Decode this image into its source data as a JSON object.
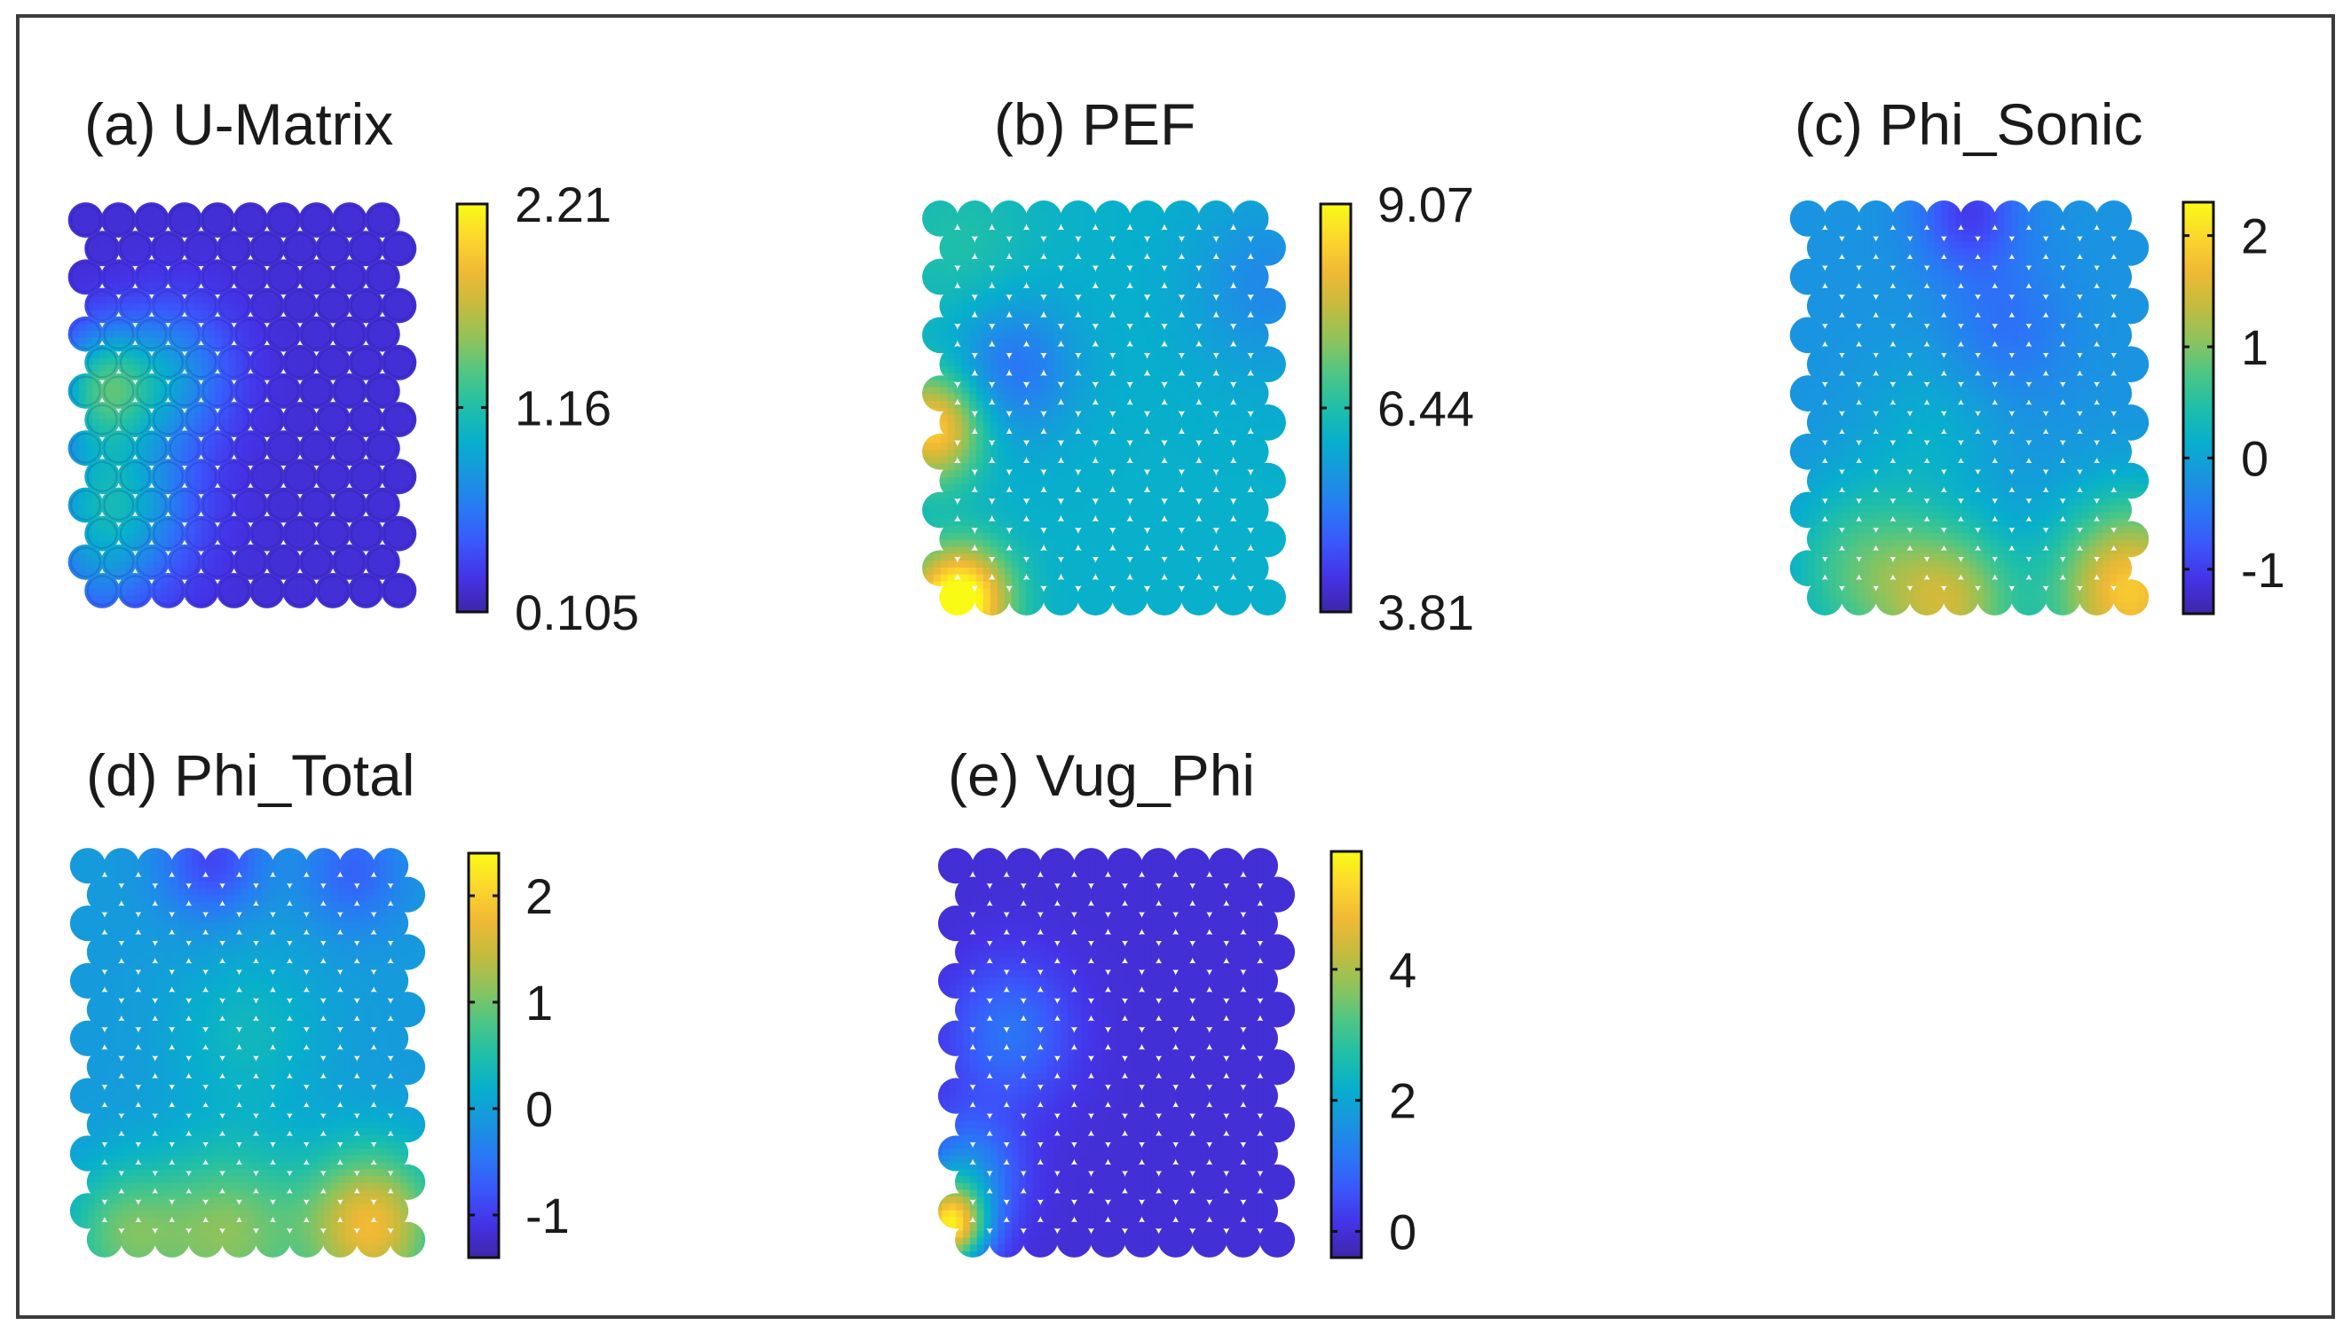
{
  "chart_data": [
    {
      "type": "heatmap",
      "title": "(a) U-Matrix",
      "grid_shape": "hexagonal",
      "colormap": "parula",
      "colorbar": {
        "min": 0.105,
        "max": 2.21,
        "ticks": [
          2.21,
          1.16,
          0.105
        ],
        "tick_labels": [
          "2.21",
          "1.16",
          "0.105"
        ]
      },
      "description_values": "mostly low (~0.3) with elevated values (~1.0-1.5) at lower-left",
      "hotspots": [
        {
          "u": 0.08,
          "v": 0.95,
          "w": 0.06,
          "s": 0.09
        },
        {
          "u": 0.1,
          "v": 0.45,
          "w": 0.42,
          "s": 0.1
        },
        {
          "u": 0.12,
          "v": 0.75,
          "w": 0.4,
          "s": 0.15
        },
        {
          "u": 0.3,
          "v": 0.42,
          "w": 0.25,
          "s": 0.12
        }
      ],
      "base": 0.06
    },
    {
      "type": "heatmap",
      "title": "(b) PEF",
      "grid_shape": "hexagonal",
      "colormap": "parula",
      "colorbar": {
        "min": 3.81,
        "max": 9.07,
        "ticks": [
          9.07,
          6.44,
          3.81
        ],
        "tick_labels": [
          "9.07",
          "6.44",
          "3.81"
        ]
      },
      "description_values": "moderate (~5-6) overall with high values (~9) along left edge near middle and bottom-left",
      "hotspots": [
        {
          "u": 0.03,
          "v": 0.55,
          "w": 0.48,
          "s": 0.09
        },
        {
          "u": 0.12,
          "v": 0.97,
          "w": 0.52,
          "s": 0.09
        },
        {
          "u": 0.04,
          "v": 0.97,
          "w": 0.2,
          "s": 0.09
        },
        {
          "u": 0.25,
          "v": 0.4,
          "w": -0.18,
          "s": 0.12
        },
        {
          "u": 0.95,
          "v": 0.2,
          "w": -0.12,
          "s": 0.15
        },
        {
          "u": 0.1,
          "v": 0.1,
          "w": 0.08,
          "s": 0.15
        }
      ],
      "base": 0.42
    },
    {
      "type": "heatmap",
      "title": "(c) Phi_Sonic",
      "grid_shape": "hexagonal",
      "colormap": "parula",
      "colorbar": {
        "min": -1.4,
        "max": 2.3,
        "ticks": [
          2,
          1,
          0,
          -1
        ],
        "tick_labels": [
          "2",
          "1",
          "0",
          "-1"
        ]
      },
      "description_values": "low (~-1) at top, higher toward bottom, maximum (~2) at bottom-right",
      "hotspots": [
        {
          "u": 0.95,
          "v": 0.95,
          "w": 0.55,
          "s": 0.15
        },
        {
          "u": 0.45,
          "v": 0.98,
          "w": 0.38,
          "s": 0.13
        },
        {
          "u": 0.2,
          "v": 0.9,
          "w": 0.25,
          "s": 0.15
        },
        {
          "u": 0.5,
          "v": 0.02,
          "w": -0.22,
          "s": 0.1
        },
        {
          "u": 0.6,
          "v": 0.3,
          "w": -0.1,
          "s": 0.12
        },
        {
          "u": 0.4,
          "v": 0.55,
          "w": 0.08,
          "s": 0.14
        }
      ],
      "base": 0.33
    },
    {
      "type": "heatmap",
      "title": "(d) Phi_Total",
      "grid_shape": "hexagonal",
      "colormap": "parula",
      "colorbar": {
        "min": -1.4,
        "max": 2.4,
        "ticks": [
          2,
          1,
          0,
          -1
        ],
        "tick_labels": [
          "2",
          "1",
          "0",
          "-1"
        ]
      },
      "description_values": "low at top, increasing toward bottom, maximum (~2) at bottom-right",
      "hotspots": [
        {
          "u": 0.85,
          "v": 0.93,
          "w": 0.48,
          "s": 0.13
        },
        {
          "u": 0.45,
          "v": 0.95,
          "w": 0.3,
          "s": 0.15
        },
        {
          "u": 0.15,
          "v": 0.95,
          "w": 0.25,
          "s": 0.12
        },
        {
          "u": 0.4,
          "v": 0.02,
          "w": -0.22,
          "s": 0.1
        },
        {
          "u": 0.8,
          "v": 0.05,
          "w": -0.15,
          "s": 0.1
        },
        {
          "u": 0.5,
          "v": 0.45,
          "w": 0.1,
          "s": 0.15
        }
      ],
      "base": 0.35
    },
    {
      "type": "heatmap",
      "title": "(e) Vug_Phi",
      "grid_shape": "hexagonal",
      "colormap": "parula",
      "colorbar": {
        "min": -0.4,
        "max": 5.8,
        "ticks": [
          4,
          2,
          0
        ],
        "tick_labels": [
          "4",
          "2",
          "0"
        ]
      },
      "description_values": "near 0 nearly everywhere, high (~5) at bottom-left corner",
      "hotspots": [
        {
          "u": 0.03,
          "v": 0.93,
          "w": 0.82,
          "s": 0.07
        },
        {
          "u": 0.08,
          "v": 0.8,
          "w": 0.25,
          "s": 0.1
        },
        {
          "u": 0.2,
          "v": 0.45,
          "w": 0.18,
          "s": 0.12
        }
      ],
      "base": 0.06
    }
  ],
  "palette": [
    "#3e26a8",
    "#4433e6",
    "#3b56fb",
    "#2978f5",
    "#1995e0",
    "#07afcc",
    "#1fbfa8",
    "#4dc685",
    "#8ec35c",
    "#c5bb3e",
    "#f0b935",
    "#fcd72d",
    "#f9fb15"
  ],
  "colors": {
    "frame": "#3c3c3c",
    "text": "#1a1a1a"
  }
}
